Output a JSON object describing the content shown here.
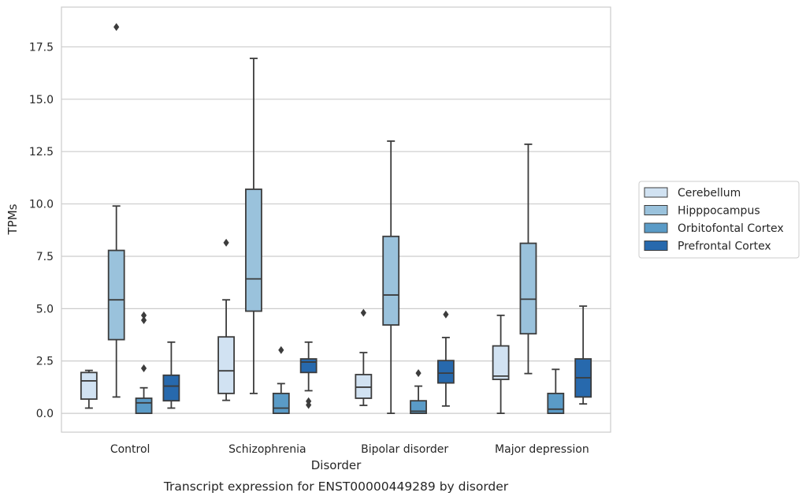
{
  "caption": "Transcript expression for ENST00000449289 by disorder",
  "chart_data": {
    "type": "box",
    "xlabel": "Disorder",
    "ylabel": "TPMs",
    "ylim": [
      -0.9,
      19.4
    ],
    "yticks": [
      0.0,
      2.5,
      5.0,
      7.5,
      10.0,
      12.5,
      15.0,
      17.5
    ],
    "ytick_labels": [
      "0.0",
      "2.5",
      "5.0",
      "7.5",
      "10.0",
      "12.5",
      "15.0",
      "17.5"
    ],
    "grid": "horizontal",
    "legend_position": "right",
    "categories": [
      "Control",
      "Schizophrenia",
      "Bipolar disorder",
      "Major depression"
    ],
    "series": [
      {
        "name": "Cerebellum",
        "color": "#d1e2f2",
        "boxes": [
          {
            "whislo": 0.25,
            "q1": 0.68,
            "med": 1.55,
            "q3": 1.95,
            "whishi": 2.05,
            "fliers": []
          },
          {
            "whislo": 0.62,
            "q1": 0.95,
            "med": 2.03,
            "q3": 3.65,
            "whishi": 5.42,
            "fliers": [
              8.15
            ]
          },
          {
            "whislo": 0.38,
            "q1": 0.72,
            "med": 1.25,
            "q3": 1.85,
            "whishi": 2.9,
            "fliers": [
              4.8
            ]
          },
          {
            "whislo": 0.0,
            "q1": 1.62,
            "med": 1.78,
            "q3": 3.22,
            "whishi": 4.68,
            "fliers": []
          }
        ]
      },
      {
        "name": "Hipppocampus",
        "color": "#9ac2dc",
        "boxes": [
          {
            "whislo": 0.78,
            "q1": 3.52,
            "med": 5.42,
            "q3": 7.78,
            "whishi": 9.9,
            "fliers": [
              18.45
            ]
          },
          {
            "whislo": 0.95,
            "q1": 4.88,
            "med": 6.42,
            "q3": 10.7,
            "whishi": 16.95,
            "fliers": []
          },
          {
            "whislo": 0.0,
            "q1": 4.22,
            "med": 5.65,
            "q3": 8.45,
            "whishi": 13.0,
            "fliers": []
          },
          {
            "whislo": 1.9,
            "q1": 3.8,
            "med": 5.45,
            "q3": 8.12,
            "whishi": 12.85,
            "fliers": []
          }
        ]
      },
      {
        "name": "Orbitofontal Cortex",
        "color": "#5a9bc7",
        "boxes": [
          {
            "whislo": 0.0,
            "q1": 0.0,
            "med": 0.5,
            "q3": 0.72,
            "whishi": 1.22,
            "fliers": [
              4.45,
              4.68,
              2.15
            ]
          },
          {
            "whislo": 0.0,
            "q1": 0.0,
            "med": 0.25,
            "q3": 0.95,
            "whishi": 1.42,
            "fliers": [
              3.02
            ]
          },
          {
            "whislo": 0.0,
            "q1": 0.0,
            "med": 0.1,
            "q3": 0.6,
            "whishi": 1.3,
            "fliers": [
              1.92
            ]
          },
          {
            "whislo": 0.0,
            "q1": 0.0,
            "med": 0.2,
            "q3": 0.95,
            "whishi": 2.1,
            "fliers": []
          }
        ]
      },
      {
        "name": "Prefrontal Cortex",
        "color": "#2769ad",
        "boxes": [
          {
            "whislo": 0.25,
            "q1": 0.6,
            "med": 1.3,
            "q3": 1.82,
            "whishi": 3.4,
            "fliers": []
          },
          {
            "whislo": 1.08,
            "q1": 1.95,
            "med": 2.45,
            "q3": 2.6,
            "whishi": 3.4,
            "fliers": [
              0.58,
              0.4
            ]
          },
          {
            "whislo": 0.35,
            "q1": 1.45,
            "med": 1.92,
            "q3": 2.52,
            "whishi": 3.62,
            "fliers": [
              4.72
            ]
          },
          {
            "whislo": 0.45,
            "q1": 0.78,
            "med": 1.7,
            "q3": 2.6,
            "whishi": 5.12,
            "fliers": []
          }
        ]
      }
    ]
  }
}
